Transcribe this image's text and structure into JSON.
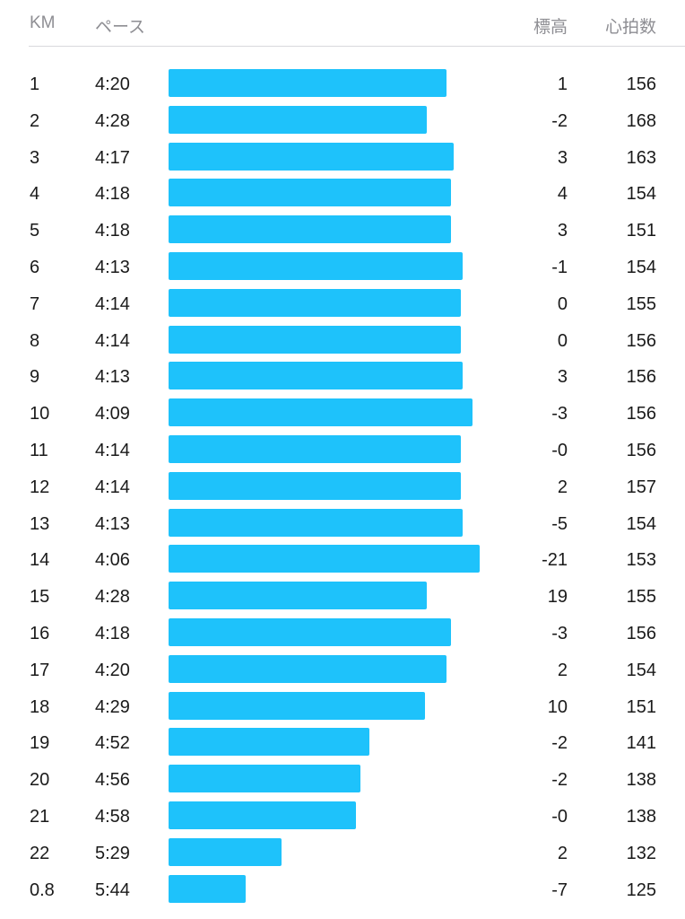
{
  "header": {
    "km": "KM",
    "pace": "ペース",
    "elevation": "標高",
    "heart_rate": "心拍数"
  },
  "colors": {
    "bar": "#1ec2fb",
    "header_text": "#8e8e93"
  },
  "splits": [
    {
      "km": "1",
      "pace": "4:20",
      "elev": "1",
      "hr": "156"
    },
    {
      "km": "2",
      "pace": "4:28",
      "elev": "-2",
      "hr": "168"
    },
    {
      "km": "3",
      "pace": "4:17",
      "elev": "3",
      "hr": "163"
    },
    {
      "km": "4",
      "pace": "4:18",
      "elev": "4",
      "hr": "154"
    },
    {
      "km": "5",
      "pace": "4:18",
      "elev": "3",
      "hr": "151"
    },
    {
      "km": "6",
      "pace": "4:13",
      "elev": "-1",
      "hr": "154"
    },
    {
      "km": "7",
      "pace": "4:14",
      "elev": "0",
      "hr": "155"
    },
    {
      "km": "8",
      "pace": "4:14",
      "elev": "0",
      "hr": "156"
    },
    {
      "km": "9",
      "pace": "4:13",
      "elev": "3",
      "hr": "156"
    },
    {
      "km": "10",
      "pace": "4:09",
      "elev": "-3",
      "hr": "156"
    },
    {
      "km": "11",
      "pace": "4:14",
      "elev": "-0",
      "hr": "156"
    },
    {
      "km": "12",
      "pace": "4:14",
      "elev": "2",
      "hr": "157"
    },
    {
      "km": "13",
      "pace": "4:13",
      "elev": "-5",
      "hr": "154"
    },
    {
      "km": "14",
      "pace": "4:06",
      "elev": "-21",
      "hr": "153"
    },
    {
      "km": "15",
      "pace": "4:28",
      "elev": "19",
      "hr": "155"
    },
    {
      "km": "16",
      "pace": "4:18",
      "elev": "-3",
      "hr": "156"
    },
    {
      "km": "17",
      "pace": "4:20",
      "elev": "2",
      "hr": "154"
    },
    {
      "km": "18",
      "pace": "4:29",
      "elev": "10",
      "hr": "151"
    },
    {
      "km": "19",
      "pace": "4:52",
      "elev": "-2",
      "hr": "141"
    },
    {
      "km": "20",
      "pace": "4:56",
      "elev": "-2",
      "hr": "138"
    },
    {
      "km": "21",
      "pace": "4:58",
      "elev": "-0",
      "hr": "138"
    },
    {
      "km": "22",
      "pace": "5:29",
      "elev": "2",
      "hr": "132"
    },
    {
      "km": "0.8",
      "pace": "5:44",
      "elev": "-7",
      "hr": "125"
    }
  ]
}
